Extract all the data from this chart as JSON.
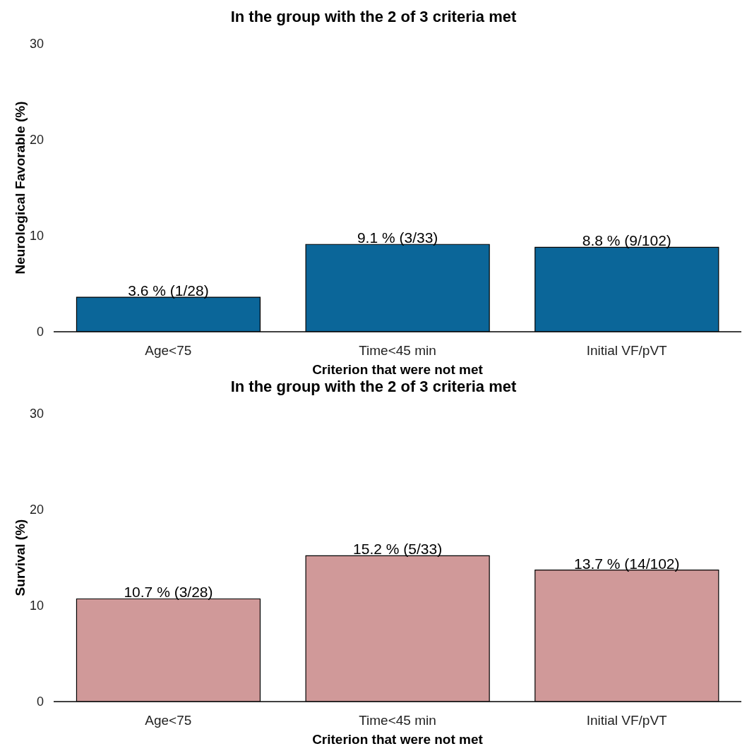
{
  "chart_data": [
    {
      "type": "bar",
      "title": "In the group with the 2 of 3 criteria met",
      "xlabel": "Criterion that were not met",
      "ylabel": "Neurological Favorable (%)",
      "categories": [
        "Age<75",
        "Time<45 min",
        "Initial VF/pVT"
      ],
      "values": [
        3.6,
        9.1,
        8.8
      ],
      "value_labels": [
        "3.6 % (1/28)",
        "9.1 % (3/33)",
        "8.8 % (9/102)"
      ],
      "color": "#0b6699",
      "ylim": [
        0,
        30
      ],
      "yticks": [
        0,
        10,
        20,
        30
      ]
    },
    {
      "type": "bar",
      "title": "In the group with the 2 of 3 criteria met",
      "xlabel": "Criterion that were not met",
      "ylabel": "Survival (%)",
      "categories": [
        "Age<75",
        "Time<45 min",
        "Initial VF/pVT"
      ],
      "values": [
        10.7,
        15.2,
        13.7
      ],
      "value_labels": [
        "10.7 % (3/28)",
        "15.2 % (5/33)",
        "13.7 % (14/102)"
      ],
      "color": "#d09999",
      "ylim": [
        0,
        30
      ],
      "yticks": [
        0,
        10,
        20,
        30
      ]
    }
  ]
}
